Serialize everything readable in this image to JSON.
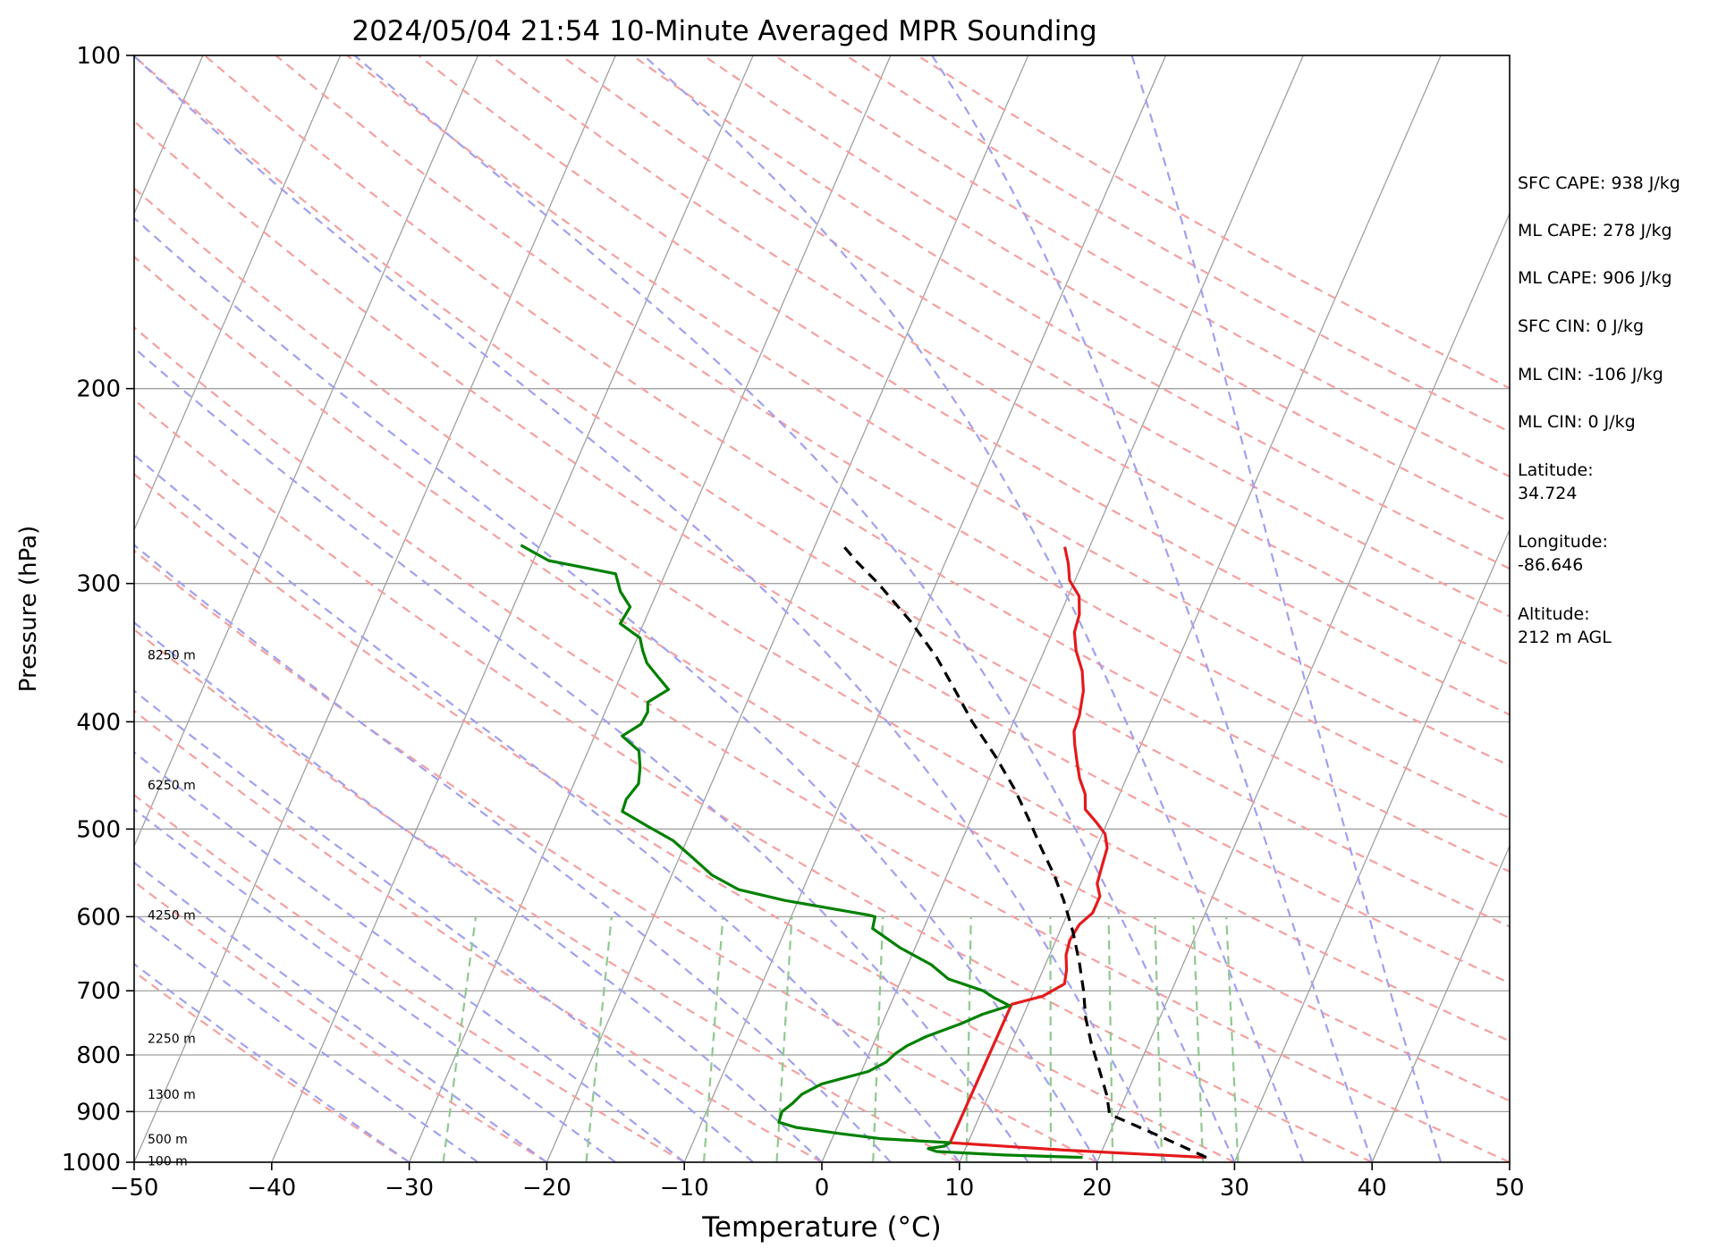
{
  "chart_data": {
    "type": "line",
    "title": "2024/05/04 21:54 10-Minute Averaged MPR Sounding",
    "xlabel": "Temperature (°C)",
    "ylabel": "Pressure (hPa)",
    "xlim": [
      -50,
      50
    ],
    "ylim": [
      1000,
      100
    ],
    "y_scale": "log",
    "x_ticks": [
      "−50",
      "−40",
      "−30",
      "−20",
      "−10",
      "0",
      "10",
      "20",
      "30",
      "40",
      "50"
    ],
    "x_tick_values": [
      -50,
      -40,
      -30,
      -20,
      -10,
      0,
      10,
      20,
      30,
      40,
      50
    ],
    "y_ticks": [
      "1000",
      "900",
      "800",
      "700",
      "600",
      "500",
      "400",
      "300",
      "200",
      "100"
    ],
    "y_tick_values": [
      1000,
      900,
      800,
      700,
      600,
      500,
      400,
      300,
      200,
      100
    ],
    "grid": true,
    "skew": true,
    "height_labels": [
      {
        "text": "100 m",
        "pressure": 997
      },
      {
        "text": "500 m",
        "pressure": 953
      },
      {
        "text": "1300 m",
        "pressure": 868
      },
      {
        "text": "2250 m",
        "pressure": 773
      },
      {
        "text": "4250 m",
        "pressure": 598
      },
      {
        "text": "6250 m",
        "pressure": 456
      },
      {
        "text": "8250 m",
        "pressure": 348
      }
    ],
    "series": [
      {
        "color": "#e41a1c",
        "style": "solid",
        "points": [
          {
            "p": 990,
            "t": 27.8
          },
          {
            "p": 975,
            "t": 17.2
          },
          {
            "p": 960,
            "t": 8.7
          },
          {
            "p": 720,
            "t": 8.8
          },
          {
            "p": 708,
            "t": 10.8
          },
          {
            "p": 690,
            "t": 12.0
          },
          {
            "p": 670,
            "t": 11.7
          },
          {
            "p": 650,
            "t": 11.2
          },
          {
            "p": 630,
            "t": 11.0
          },
          {
            "p": 610,
            "t": 11.2
          },
          {
            "p": 595,
            "t": 11.8
          },
          {
            "p": 575,
            "t": 11.8
          },
          {
            "p": 560,
            "t": 11.2
          },
          {
            "p": 540,
            "t": 11.0
          },
          {
            "p": 520,
            "t": 10.8
          },
          {
            "p": 505,
            "t": 10.2
          },
          {
            "p": 493,
            "t": 9.2
          },
          {
            "p": 480,
            "t": 8.0
          },
          {
            "p": 465,
            "t": 7.5
          },
          {
            "p": 450,
            "t": 6.6
          },
          {
            "p": 435,
            "t": 5.9
          },
          {
            "p": 420,
            "t": 5.2
          },
          {
            "p": 408,
            "t": 4.7
          },
          {
            "p": 395,
            "t": 4.6
          },
          {
            "p": 375,
            "t": 4.1
          },
          {
            "p": 360,
            "t": 3.4
          },
          {
            "p": 345,
            "t": 2.3
          },
          {
            "p": 332,
            "t": 1.6
          },
          {
            "p": 320,
            "t": 1.4
          },
          {
            "p": 308,
            "t": 0.8
          },
          {
            "p": 298,
            "t": -0.4
          },
          {
            "p": 288,
            "t": -1.0
          },
          {
            "p": 278,
            "t": -1.8
          }
        ]
      },
      {
        "color": "#008000",
        "style": "solid",
        "points": [
          {
            "p": 990,
            "t": 18.8
          },
          {
            "p": 985,
            "t": 13.0
          },
          {
            "p": 978,
            "t": 8.0
          },
          {
            "p": 972,
            "t": 7.3
          },
          {
            "p": 967,
            "t": 8.4
          },
          {
            "p": 960,
            "t": 8.7
          },
          {
            "p": 952,
            "t": 3.5
          },
          {
            "p": 942,
            "t": 0.4
          },
          {
            "p": 930,
            "t": -3.0
          },
          {
            "p": 920,
            "t": -4.4
          },
          {
            "p": 900,
            "t": -4.5
          },
          {
            "p": 885,
            "t": -4.0
          },
          {
            "p": 868,
            "t": -3.6
          },
          {
            "p": 850,
            "t": -2.5
          },
          {
            "p": 828,
            "t": 0.5
          },
          {
            "p": 812,
            "t": 1.5
          },
          {
            "p": 798,
            "t": 1.9
          },
          {
            "p": 785,
            "t": 2.5
          },
          {
            "p": 770,
            "t": 3.6
          },
          {
            "p": 750,
            "t": 5.7
          },
          {
            "p": 735,
            "t": 7.0
          },
          {
            "p": 722,
            "t": 8.7
          },
          {
            "p": 710,
            "t": 7.3
          },
          {
            "p": 700,
            "t": 6.3
          },
          {
            "p": 683,
            "t": 3.4
          },
          {
            "p": 663,
            "t": 1.7
          },
          {
            "p": 640,
            "t": -1.1
          },
          {
            "p": 615,
            "t": -3.7
          },
          {
            "p": 600,
            "t": -3.9
          },
          {
            "p": 598,
            "t": -4.4
          },
          {
            "p": 580,
            "t": -11.0
          },
          {
            "p": 567,
            "t": -14.7
          },
          {
            "p": 550,
            "t": -17.1
          },
          {
            "p": 530,
            "t": -19.1
          },
          {
            "p": 512,
            "t": -21.0
          },
          {
            "p": 497,
            "t": -23.3
          },
          {
            "p": 482,
            "t": -25.6
          },
          {
            "p": 470,
            "t": -25.7
          },
          {
            "p": 455,
            "t": -25.3
          },
          {
            "p": 440,
            "t": -25.7
          },
          {
            "p": 425,
            "t": -26.3
          },
          {
            "p": 412,
            "t": -28.0
          },
          {
            "p": 402,
            "t": -27.0
          },
          {
            "p": 392,
            "t": -26.9
          },
          {
            "p": 384,
            "t": -27.2
          },
          {
            "p": 374,
            "t": -26.1
          },
          {
            "p": 364,
            "t": -27.3
          },
          {
            "p": 354,
            "t": -28.5
          },
          {
            "p": 345,
            "t": -29.2
          },
          {
            "p": 336,
            "t": -29.8
          },
          {
            "p": 326,
            "t": -31.7
          },
          {
            "p": 315,
            "t": -31.5
          },
          {
            "p": 305,
            "t": -32.7
          },
          {
            "p": 294,
            "t": -33.6
          },
          {
            "p": 286,
            "t": -38.9
          },
          {
            "p": 277,
            "t": -41.4
          }
        ]
      },
      {
        "color": "#000000",
        "style": "dashed",
        "points": [
          {
            "p": 990,
            "t": 27.8
          },
          {
            "p": 960,
            "t": 25.0
          },
          {
            "p": 930,
            "t": 22.0
          },
          {
            "p": 905,
            "t": 19.4
          },
          {
            "p": 870,
            "t": 18.6
          },
          {
            "p": 830,
            "t": 17.4
          },
          {
            "p": 780,
            "t": 15.8
          },
          {
            "p": 740,
            "t": 14.6
          },
          {
            "p": 700,
            "t": 13.6
          },
          {
            "p": 660,
            "t": 12.4
          },
          {
            "p": 620,
            "t": 11.0
          },
          {
            "p": 580,
            "t": 9.3
          },
          {
            "p": 550,
            "t": 7.8
          },
          {
            "p": 520,
            "t": 6.0
          },
          {
            "p": 490,
            "t": 4.2
          },
          {
            "p": 460,
            "t": 2.2
          },
          {
            "p": 430,
            "t": -0.2
          },
          {
            "p": 400,
            "t": -3.0
          },
          {
            "p": 375,
            "t": -5.2
          },
          {
            "p": 350,
            "t": -7.6
          },
          {
            "p": 325,
            "t": -10.6
          },
          {
            "p": 300,
            "t": -14.2
          },
          {
            "p": 287,
            "t": -16.4
          },
          {
            "p": 277,
            "t": -18.0
          }
        ]
      }
    ]
  },
  "side_info": [
    "SFC CAPE: 938 J/kg",
    "ML CAPE: 278 J/kg",
    "ML CAPE: 906 J/kg",
    "SFC CIN: 0 J/kg",
    "ML CIN: -106 J/kg",
    "ML CIN: 0 J/kg",
    "Latitude:\n34.724",
    "Longitude:\n-86.646",
    "Altitude:\n212 m AGL"
  ],
  "colors": {
    "isotherm": "#a0a0a0",
    "dry_adiabat": "#f4a0a0",
    "moist_adiabat": "#a0a0f0",
    "mixing_ratio": "#90c890"
  }
}
